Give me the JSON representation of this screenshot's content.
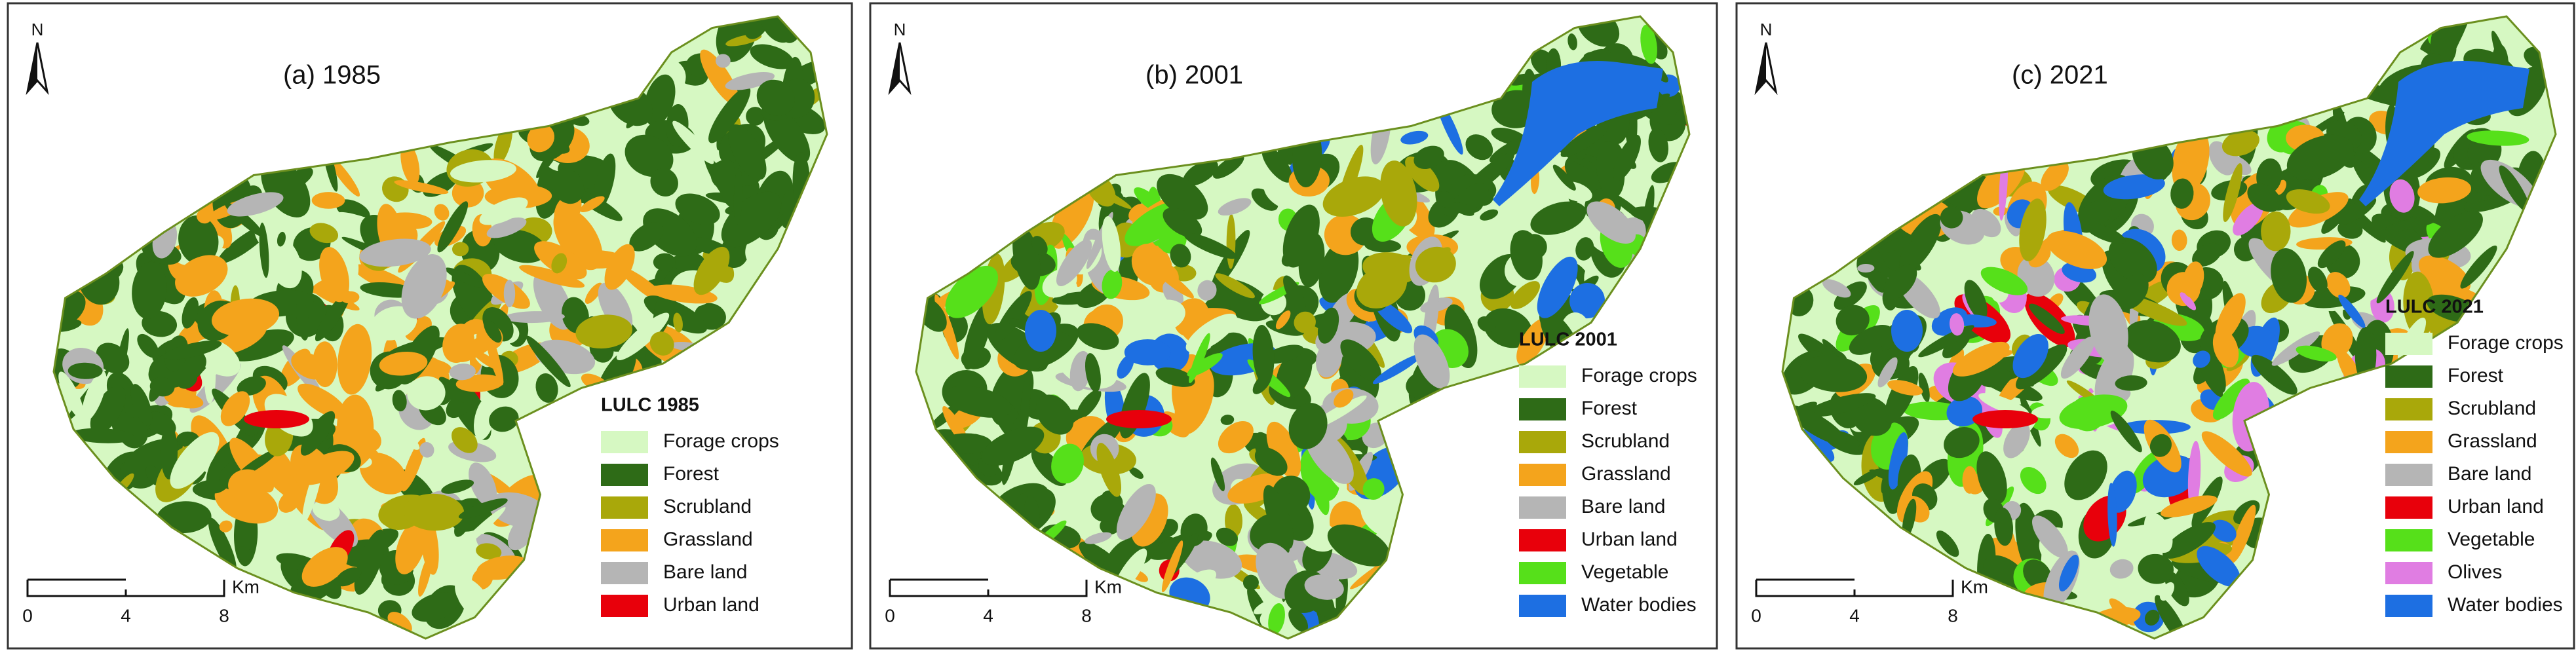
{
  "panels": [
    {
      "title": "(a) 1985",
      "north": "N",
      "legend": {
        "title": "LULC 1985",
        "items": [
          {
            "label": "Forage crops",
            "color": "#d6f8c2"
          },
          {
            "label": "Forest",
            "color": "#2e6b17"
          },
          {
            "label": "Scrubland",
            "color": "#a9a80a"
          },
          {
            "label": "Grassland",
            "color": "#f4a41c"
          },
          {
            "label": "Bare land",
            "color": "#b5b5b5"
          },
          {
            "label": "Urban land",
            "color": "#e8000b"
          }
        ]
      },
      "scale": {
        "ticks": [
          "0",
          "4",
          "8"
        ],
        "unit": "Km"
      }
    },
    {
      "title": "(b) 2001",
      "north": "N",
      "legend": {
        "title": "LULC 2001",
        "items": [
          {
            "label": "Forage crops",
            "color": "#d6f8c2"
          },
          {
            "label": "Forest",
            "color": "#2e6b17"
          },
          {
            "label": "Scrubland",
            "color": "#a9a80a"
          },
          {
            "label": "Grassland",
            "color": "#f4a41c"
          },
          {
            "label": "Bare land",
            "color": "#b5b5b5"
          },
          {
            "label": "Urban land",
            "color": "#e8000b"
          },
          {
            "label": "Vegetable",
            "color": "#56e01a"
          },
          {
            "label": "Water bodies",
            "color": "#1d6fe2"
          }
        ]
      },
      "scale": {
        "ticks": [
          "0",
          "4",
          "8"
        ],
        "unit": "Km"
      }
    },
    {
      "title": "(c) 2021",
      "north": "N",
      "legend": {
        "title": "LULC 2021",
        "items": [
          {
            "label": "Forage crops",
            "color": "#d6f8c2"
          },
          {
            "label": "Forest",
            "color": "#2e6b17"
          },
          {
            "label": "Scrubland",
            "color": "#a9a80a"
          },
          {
            "label": "Grassland",
            "color": "#f4a41c"
          },
          {
            "label": "Bare land",
            "color": "#b5b5b5"
          },
          {
            "label": "Urban land",
            "color": "#e8000b"
          },
          {
            "label": "Vegetable",
            "color": "#56e01a"
          },
          {
            "label": "Olives",
            "color": "#e07de2"
          },
          {
            "label": "Water bodies",
            "color": "#1d6fe2"
          }
        ]
      },
      "scale": {
        "ticks": [
          "0",
          "4",
          "8"
        ],
        "unit": "Km"
      }
    }
  ]
}
